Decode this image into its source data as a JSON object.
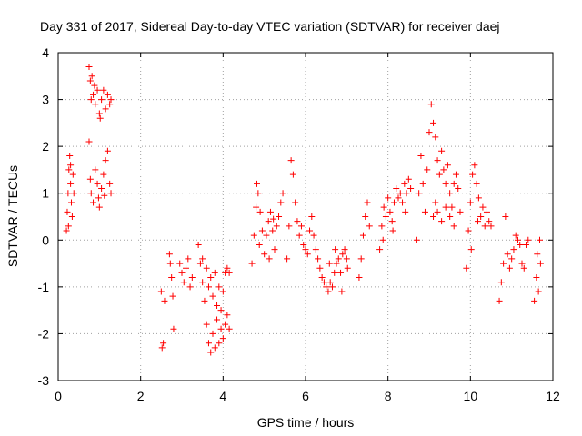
{
  "chart_data": {
    "type": "scatter",
    "title": "Day 331 of 2017, Sidereal Day-to-day VTEC variation (SDTVAR) for receiver daej",
    "xlabel": "GPS time / hours",
    "ylabel": "SDTVAR / TECUs",
    "xlim": [
      0,
      12
    ],
    "ylim": [
      -3,
      4
    ],
    "xticks": [
      "0",
      "2",
      "4",
      "6",
      "8",
      "10",
      "12"
    ],
    "yticks": [
      "-3",
      "-2",
      "-1",
      "0",
      "1",
      "2",
      "3",
      "4"
    ],
    "grid": true,
    "marker": "+",
    "colors": {
      "series": "#ff0000",
      "grid": "#a0a0a0"
    },
    "series": [
      {
        "name": "SDTVAR",
        "points": [
          [
            0.2,
            0.2
          ],
          [
            0.22,
            0.6
          ],
          [
            0.24,
            1.0
          ],
          [
            0.26,
            1.5
          ],
          [
            0.28,
            1.8
          ],
          [
            0.3,
            1.2
          ],
          [
            0.32,
            0.8
          ],
          [
            0.34,
            0.5
          ],
          [
            0.36,
            1.4
          ],
          [
            0.38,
            1.0
          ],
          [
            0.25,
            0.3
          ],
          [
            0.3,
            1.6
          ],
          [
            0.75,
            3.7
          ],
          [
            0.78,
            3.4
          ],
          [
            0.8,
            3.0
          ],
          [
            0.82,
            3.5
          ],
          [
            0.85,
            3.1
          ],
          [
            0.9,
            2.9
          ],
          [
            0.95,
            3.2
          ],
          [
            1.0,
            2.7
          ],
          [
            1.05,
            3.0
          ],
          [
            1.1,
            3.2
          ],
          [
            1.15,
            2.8
          ],
          [
            1.2,
            3.1
          ],
          [
            1.25,
            2.9
          ],
          [
            1.28,
            3.0
          ],
          [
            0.88,
            3.3
          ],
          [
            1.02,
            2.6
          ],
          [
            0.75,
            2.1
          ],
          [
            0.78,
            1.3
          ],
          [
            0.8,
            1.0
          ],
          [
            0.85,
            0.8
          ],
          [
            0.9,
            1.5
          ],
          [
            0.95,
            1.2
          ],
          [
            1.0,
            0.7
          ],
          [
            1.05,
            1.1
          ],
          [
            1.1,
            1.4
          ],
          [
            1.15,
            1.7
          ],
          [
            1.2,
            1.9
          ],
          [
            1.25,
            1.2
          ],
          [
            1.28,
            1.0
          ],
          [
            0.98,
            0.9
          ],
          [
            1.12,
            0.95
          ],
          [
            2.5,
            -1.1
          ],
          [
            2.52,
            -2.3
          ],
          [
            2.55,
            -2.2
          ],
          [
            2.58,
            -1.3
          ],
          [
            2.7,
            -0.3
          ],
          [
            2.72,
            -0.5
          ],
          [
            2.75,
            -0.8
          ],
          [
            2.78,
            -1.2
          ],
          [
            2.8,
            -1.9
          ],
          [
            2.95,
            -0.5
          ],
          [
            3.0,
            -0.7
          ],
          [
            3.05,
            -0.9
          ],
          [
            3.1,
            -0.6
          ],
          [
            3.15,
            -0.4
          ],
          [
            3.2,
            -1.0
          ],
          [
            3.25,
            -0.8
          ],
          [
            3.4,
            -0.1
          ],
          [
            3.45,
            -0.5
          ],
          [
            3.5,
            -0.9
          ],
          [
            3.55,
            -1.3
          ],
          [
            3.6,
            -1.8
          ],
          [
            3.65,
            -2.2
          ],
          [
            3.7,
            -2.4
          ],
          [
            3.75,
            -2.0
          ],
          [
            3.8,
            -2.3
          ],
          [
            3.85,
            -1.7
          ],
          [
            3.9,
            -2.2
          ],
          [
            3.95,
            -1.9
          ],
          [
            4.0,
            -2.1
          ],
          [
            4.05,
            -1.8
          ],
          [
            4.1,
            -1.6
          ],
          [
            4.15,
            -1.9
          ],
          [
            3.5,
            -0.4
          ],
          [
            3.6,
            -0.6
          ],
          [
            3.7,
            -0.8
          ],
          [
            3.8,
            -0.7
          ],
          [
            3.9,
            -1.0
          ],
          [
            4.0,
            -1.1
          ],
          [
            3.65,
            -1.0
          ],
          [
            3.75,
            -1.2
          ],
          [
            3.85,
            -1.4
          ],
          [
            3.95,
            -1.5
          ],
          [
            4.05,
            -0.7
          ],
          [
            4.1,
            -0.6
          ],
          [
            4.15,
            -0.7
          ],
          [
            4.7,
            -0.5
          ],
          [
            4.75,
            0.1
          ],
          [
            4.8,
            0.7
          ],
          [
            4.85,
            1.0
          ],
          [
            4.9,
            0.6
          ],
          [
            4.95,
            0.2
          ],
          [
            5.0,
            -0.3
          ],
          [
            5.05,
            0.1
          ],
          [
            5.1,
            0.4
          ],
          [
            5.15,
            0.6
          ],
          [
            5.2,
            0.2
          ],
          [
            5.25,
            -0.2
          ],
          [
            5.3,
            0.3
          ],
          [
            5.35,
            0.5
          ],
          [
            5.4,
            0.8
          ],
          [
            5.45,
            1.0
          ],
          [
            4.82,
            1.2
          ],
          [
            4.88,
            -0.1
          ],
          [
            5.12,
            -0.4
          ],
          [
            5.22,
            0.45
          ],
          [
            5.55,
            -0.4
          ],
          [
            5.6,
            0.3
          ],
          [
            5.65,
            1.7
          ],
          [
            5.7,
            1.4
          ],
          [
            5.75,
            0.8
          ],
          [
            5.8,
            0.4
          ],
          [
            5.85,
            0.1
          ],
          [
            5.9,
            0.3
          ],
          [
            5.95,
            -0.1
          ],
          [
            6.0,
            -0.2
          ],
          [
            6.05,
            -0.3
          ],
          [
            6.1,
            0.2
          ],
          [
            6.15,
            0.5
          ],
          [
            6.2,
            0.1
          ],
          [
            6.25,
            -0.2
          ],
          [
            6.3,
            -0.4
          ],
          [
            6.35,
            -0.6
          ],
          [
            6.4,
            -0.8
          ],
          [
            6.45,
            -0.9
          ],
          [
            6.5,
            -1.0
          ],
          [
            6.55,
            -1.1
          ],
          [
            6.6,
            -0.9
          ],
          [
            6.65,
            -1.0
          ],
          [
            6.7,
            -0.7
          ],
          [
            6.75,
            -0.5
          ],
          [
            6.8,
            -0.4
          ],
          [
            6.85,
            -0.7
          ],
          [
            6.9,
            -0.3
          ],
          [
            6.95,
            -0.2
          ],
          [
            7.0,
            -0.4
          ],
          [
            6.58,
            -0.5
          ],
          [
            6.72,
            -0.2
          ],
          [
            6.88,
            -1.1
          ],
          [
            7.02,
            -0.6
          ],
          [
            7.3,
            -0.8
          ],
          [
            7.35,
            -0.4
          ],
          [
            7.4,
            0.1
          ],
          [
            7.45,
            0.5
          ],
          [
            7.5,
            0.8
          ],
          [
            7.55,
            0.3
          ],
          [
            7.8,
            -0.2
          ],
          [
            7.85,
            0.3
          ],
          [
            7.9,
            0.7
          ],
          [
            7.95,
            0.5
          ],
          [
            8.0,
            0.9
          ],
          [
            8.05,
            0.6
          ],
          [
            8.1,
            0.4
          ],
          [
            8.15,
            0.8
          ],
          [
            8.2,
            1.1
          ],
          [
            8.25,
            0.9
          ],
          [
            8.3,
            1.0
          ],
          [
            8.35,
            0.8
          ],
          [
            8.4,
            1.2
          ],
          [
            8.45,
            1.0
          ],
          [
            8.5,
            1.3
          ],
          [
            8.55,
            1.1
          ],
          [
            7.88,
            0.0
          ],
          [
            8.12,
            0.2
          ],
          [
            8.42,
            0.6
          ],
          [
            8.7,
            0.0
          ],
          [
            8.75,
            1.0
          ],
          [
            8.8,
            1.8
          ],
          [
            8.85,
            1.2
          ],
          [
            8.9,
            0.6
          ],
          [
            8.95,
            1.5
          ],
          [
            9.0,
            2.3
          ],
          [
            9.05,
            2.9
          ],
          [
            9.1,
            2.5
          ],
          [
            9.15,
            2.2
          ],
          [
            9.2,
            1.7
          ],
          [
            9.25,
            1.4
          ],
          [
            9.3,
            1.9
          ],
          [
            9.35,
            1.5
          ],
          [
            9.4,
            1.2
          ],
          [
            9.45,
            1.6
          ],
          [
            9.5,
            1.0
          ],
          [
            9.55,
            0.7
          ],
          [
            9.6,
            1.2
          ],
          [
            9.65,
            1.4
          ],
          [
            9.7,
            1.1
          ],
          [
            9.75,
            0.6
          ],
          [
            9.1,
            0.5
          ],
          [
            9.15,
            0.8
          ],
          [
            9.2,
            0.6
          ],
          [
            9.3,
            0.4
          ],
          [
            9.4,
            0.7
          ],
          [
            9.5,
            0.5
          ],
          [
            9.6,
            0.3
          ],
          [
            9.9,
            -0.6
          ],
          [
            9.95,
            0.2
          ],
          [
            10.0,
            0.8
          ],
          [
            10.05,
            1.4
          ],
          [
            10.1,
            1.6
          ],
          [
            10.15,
            1.2
          ],
          [
            10.2,
            0.9
          ],
          [
            10.25,
            0.5
          ],
          [
            10.3,
            0.7
          ],
          [
            10.35,
            0.3
          ],
          [
            10.4,
            0.6
          ],
          [
            10.45,
            0.4
          ],
          [
            10.5,
            0.3
          ],
          [
            10.02,
            -0.2
          ],
          [
            10.18,
            0.4
          ],
          [
            10.7,
            -1.3
          ],
          [
            10.75,
            -0.9
          ],
          [
            10.8,
            -0.5
          ],
          [
            10.85,
            0.5
          ],
          [
            10.9,
            -0.3
          ],
          [
            10.95,
            -0.6
          ],
          [
            11.0,
            -0.4
          ],
          [
            11.05,
            -0.2
          ],
          [
            11.1,
            0.1
          ],
          [
            11.15,
            0.0
          ],
          [
            11.2,
            -0.1
          ],
          [
            11.25,
            -0.5
          ],
          [
            11.3,
            -0.6
          ],
          [
            11.35,
            -0.1
          ],
          [
            11.4,
            0.0
          ],
          [
            11.55,
            -1.3
          ],
          [
            11.6,
            -0.8
          ],
          [
            11.62,
            -0.3
          ],
          [
            11.65,
            -1.1
          ],
          [
            11.68,
            0.0
          ],
          [
            11.7,
            -0.5
          ]
        ]
      }
    ]
  }
}
